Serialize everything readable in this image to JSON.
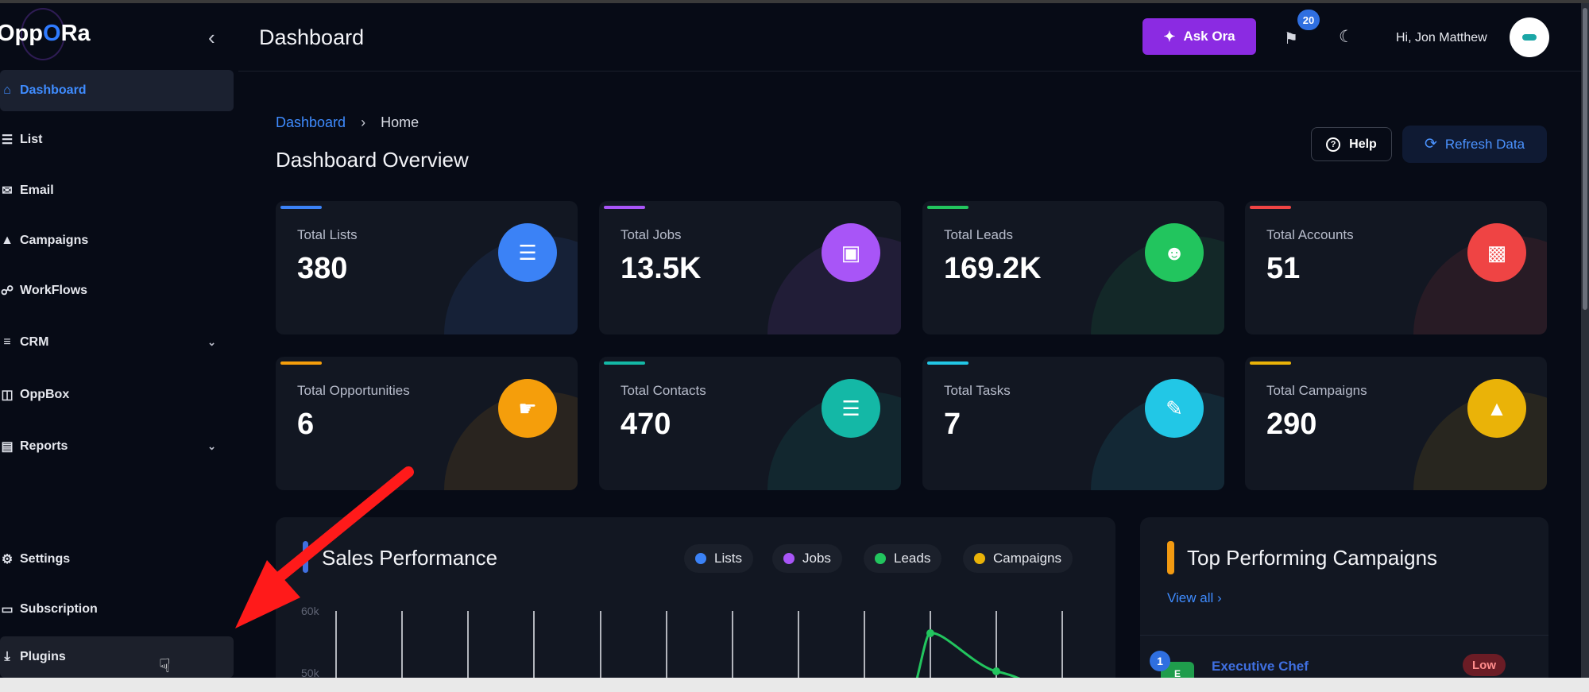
{
  "sidebar": {
    "logo_pre": "Opp",
    "logo_o": "O",
    "logo_post": "Ra",
    "items": [
      {
        "label": "Dashboard",
        "icon": "home-icon"
      },
      {
        "label": "List",
        "icon": "list-icon"
      },
      {
        "label": "Email",
        "icon": "mail-icon"
      },
      {
        "label": "Campaigns",
        "icon": "tent-icon"
      },
      {
        "label": "WorkFlows",
        "icon": "workflow-icon"
      },
      {
        "label": "CRM",
        "icon": "menu-icon"
      },
      {
        "label": "OppBox",
        "icon": "inbox-icon"
      },
      {
        "label": "Reports",
        "icon": "chart-icon"
      },
      {
        "label": "Settings",
        "icon": "gear-icon"
      },
      {
        "label": "Subscription",
        "icon": "card-icon"
      },
      {
        "label": "Plugins",
        "icon": "download-icon"
      }
    ]
  },
  "header": {
    "title": "Dashboard",
    "ask_label": "Ask Ora",
    "notification_count": "20",
    "greeting": "Hi, Jon Matthew"
  },
  "breadcrumb": {
    "root": "Dashboard",
    "current": "Home"
  },
  "overview_title": "Dashboard Overview",
  "actions": {
    "help_label": "Help",
    "refresh_label": "Refresh Data"
  },
  "cards": [
    {
      "label": "Total Lists",
      "value": "380",
      "color": "#3b82f6",
      "icon": "list-icon"
    },
    {
      "label": "Total Jobs",
      "value": "13.5K",
      "color": "#a855f7",
      "icon": "briefcase-icon"
    },
    {
      "label": "Total Leads",
      "value": "169.2K",
      "color": "#22c55e",
      "icon": "users-icon"
    },
    {
      "label": "Total Accounts",
      "value": "51",
      "color": "#ef4444",
      "icon": "contact-card-icon"
    },
    {
      "label": "Total Opportunities",
      "value": "6",
      "color": "#f59e0b",
      "icon": "handshake-icon"
    },
    {
      "label": "Total Contacts",
      "value": "470",
      "color": "#14b8a6",
      "icon": "list-icon"
    },
    {
      "label": "Total Tasks",
      "value": "7",
      "color": "#22c7e6",
      "icon": "clipboard-icon"
    },
    {
      "label": "Total Campaigns",
      "value": "290",
      "color": "#eab308",
      "icon": "tent-icon"
    }
  ],
  "sales": {
    "title": "Sales Performance",
    "legend": [
      {
        "label": "Lists",
        "color": "#3b82f6"
      },
      {
        "label": "Jobs",
        "color": "#a855f7"
      },
      {
        "label": "Leads",
        "color": "#22c55e"
      },
      {
        "label": "Campaigns",
        "color": "#eab308"
      }
    ],
    "y_ticks": [
      "60k",
      "50k"
    ]
  },
  "top_campaigns": {
    "title": "Top Performing Campaigns",
    "view_all": "View all",
    "items": [
      {
        "rank": "1",
        "tile": "E",
        "name": "Executive Chef",
        "badge": "Low"
      }
    ]
  }
}
